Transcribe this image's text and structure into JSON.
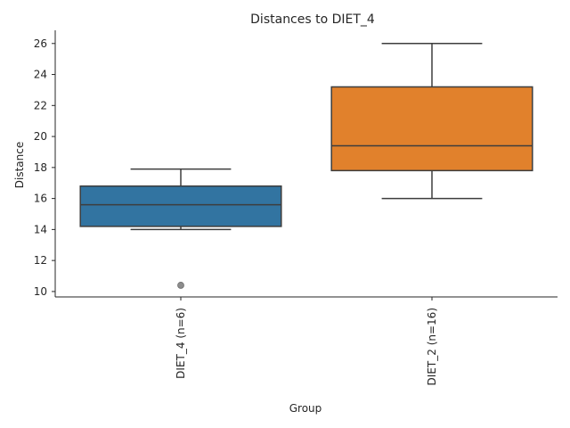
{
  "chart_data": {
    "type": "box",
    "title": "Distances to DIET_4",
    "xlabel": "Group",
    "ylabel": "Distance",
    "ylim": [
      9.65,
      26.85
    ],
    "yticks": [
      10,
      12,
      14,
      16,
      18,
      20,
      22,
      24,
      26
    ],
    "grid": false,
    "categories": [
      "DIET_4 (n=6)",
      "DIET_2 (n=16)"
    ],
    "boxes": [
      {
        "name": "DIET_4 (n=6)",
        "whisker_low": 14.0,
        "q1": 14.2,
        "median": 15.6,
        "q3": 16.8,
        "whisker_high": 17.9,
        "outliers": [
          10.4
        ],
        "color": "#3274a1"
      },
      {
        "name": "DIET_2 (n=16)",
        "whisker_low": 16.0,
        "q1": 17.8,
        "median": 19.4,
        "q3": 23.2,
        "whisker_high": 26.0,
        "outliers": [],
        "color": "#e1812c"
      }
    ]
  }
}
